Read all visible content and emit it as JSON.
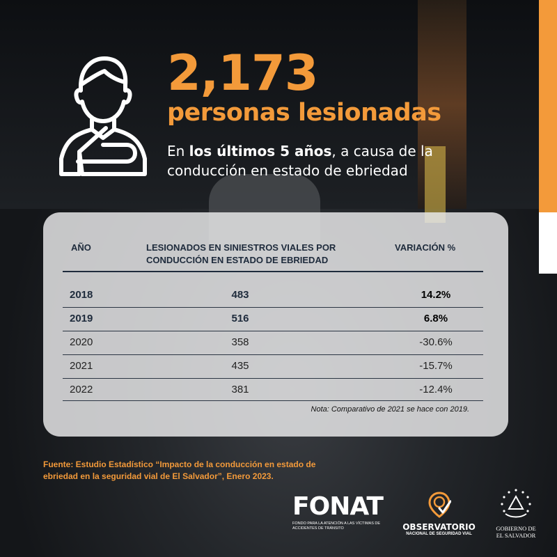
{
  "headline": {
    "number": "2,173",
    "subtitle": "personas lesionadas",
    "desc_prefix": "En ",
    "desc_bold": "los últimos 5 años",
    "desc_suffix": ", a causa de la conducción en estado de ebriedad"
  },
  "chart_data": {
    "type": "table",
    "columns": [
      "AÑO",
      "LESIONADOS EN SINIESTROS VIALES POR CONDUCCIÓN EN ESTADO DE EBRIEDAD",
      "VARIACIÓN %"
    ],
    "rows": [
      [
        "2018",
        "483",
        "14.2%"
      ],
      [
        "2019",
        "516",
        "6.8%"
      ],
      [
        "2020",
        "358",
        "-30.6%"
      ],
      [
        "2021",
        "435",
        "-15.7%"
      ],
      [
        "2022",
        "381",
        "-12.4%"
      ]
    ],
    "years": [
      2018,
      2019,
      2020,
      2021,
      2022
    ],
    "values": [
      483,
      516,
      358,
      435,
      381
    ],
    "variation_pct": [
      14.2,
      6.8,
      -30.6,
      -15.7,
      -12.4
    ],
    "highlighted_years": [
      "2018",
      "2019"
    ],
    "note": "Nota: Comparativo de 2021 se hace con 2019."
  },
  "table": {
    "col_year": "AÑO",
    "col_count": "LESIONADOS EN SINIESTROS VIALES POR CONDUCCIÓN EN ESTADO DE EBRIEDAD",
    "col_var": "VARIACIÓN %"
  },
  "source": "Fuente: Estudio Estadístico “Impacto de la conducción en estado de ebriedad en la seguridad vial de El Salvador”, Enero 2023.",
  "logos": {
    "fonat_word": "FONAT",
    "fonat_sub": "FONDO PARA LA ATENCIÓN A LAS VÍCTIMAS DE ACCIDENTES DE TRÁNSITO",
    "obs_title": "OBSERVATORIO",
    "obs_sub": "NACIONAL DE SEGURIDAD VIAL",
    "gob_line1": "GOBIERNO DE",
    "gob_line2": "EL SALVADOR"
  },
  "colors": {
    "accent": "#f39a3a",
    "navy": "#1e2b3c",
    "card": "#e8e8ea"
  },
  "icons": {
    "hero": "injured-person-arm-sling-icon",
    "observatorio": "location-pin-check-icon",
    "gobierno": "coat-of-arms-icon"
  }
}
